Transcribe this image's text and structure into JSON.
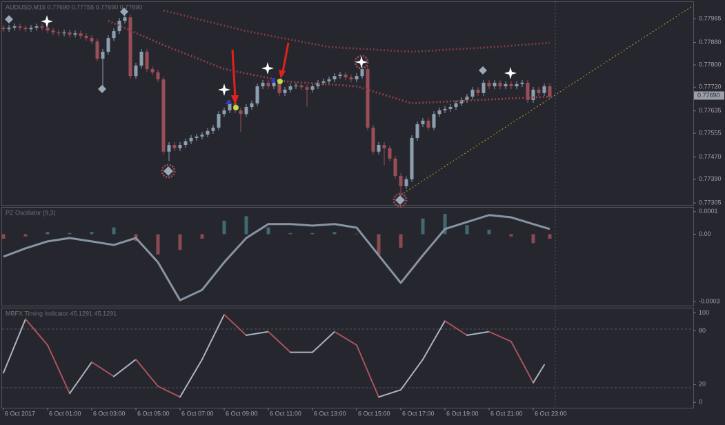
{
  "chart_data": [
    {
      "type": "candlestick",
      "title": "AUDUSD,M15  0.77690 0.77755 0.77690 0.77690",
      "categories": [
        "6 Oct 2017",
        null,
        null,
        null,
        null,
        null,
        null,
        null,
        "6 Oct 01:00",
        null,
        null,
        null,
        null,
        null,
        null,
        null,
        "6 Oct 03:00",
        null,
        null,
        null,
        null,
        null,
        null,
        null,
        "6 Oct 05:00",
        null,
        null,
        null,
        null,
        null,
        null,
        null,
        "6 Oct 07:00",
        null,
        null,
        null,
        null,
        null,
        null,
        null,
        "6 Oct 09:00",
        null,
        null,
        null,
        null,
        null,
        null,
        null,
        "6 Oct 11:00",
        null,
        null,
        null,
        null,
        null,
        null,
        null,
        "6 Oct 13:00",
        null,
        null,
        null,
        null,
        null,
        null,
        null,
        "6 Oct 15:00",
        null,
        null,
        null,
        null,
        null,
        null,
        null,
        "6 Oct 17:00",
        null,
        null,
        null,
        null,
        null,
        null,
        null,
        "6 Oct 19:00",
        null,
        null,
        null,
        null,
        null,
        null,
        null,
        "6 Oct 21:00",
        null,
        null,
        null,
        null,
        null,
        null,
        null,
        "6 Oct 23:00",
        null,
        null,
        null
      ],
      "open": [
        0.77933,
        0.77928,
        0.77933,
        0.77938,
        0.77933,
        0.77928,
        0.77933,
        0.77938,
        0.77933,
        0.77923,
        0.77916,
        0.77913,
        0.77916,
        0.77908,
        0.77913,
        0.77904,
        0.77896,
        0.77884,
        0.77822,
        0.77847,
        0.77896,
        0.77921,
        0.77958,
        0.7797,
        0.7776,
        0.77797,
        0.77847,
        0.77785,
        0.77773,
        0.77748,
        0.77489,
        0.77513,
        0.77501,
        0.77513,
        0.77526,
        0.77538,
        0.77543,
        0.7755,
        0.77563,
        0.77575,
        0.77624,
        0.77637,
        0.77662,
        0.77637,
        0.77624,
        0.77649,
        0.77662,
        0.77723,
        0.77736,
        0.77723,
        0.77736,
        0.77699,
        0.77711,
        0.77723,
        0.77726,
        0.7772,
        0.77711,
        0.77723,
        0.77736,
        0.77741,
        0.77748,
        0.7776,
        0.77765,
        0.77755,
        0.77748,
        0.7776,
        0.77785,
        0.77575,
        0.77489,
        0.77513,
        0.77501,
        0.77464,
        0.77402,
        0.77365,
        0.7739,
        0.77538,
        0.77587,
        0.776,
        0.77575,
        0.77624,
        0.77637,
        0.77642,
        0.77649,
        0.77662,
        0.77674,
        0.77686,
        0.77711,
        0.77699,
        0.77736,
        0.77723,
        0.77736,
        0.77723,
        0.77731,
        0.77723,
        0.77731,
        0.77736,
        0.77674,
        0.77711,
        0.77699,
        0.77723
      ],
      "high": [
        0.77943,
        0.77943,
        0.77948,
        0.77948,
        0.77943,
        0.77943,
        0.77948,
        0.77948,
        0.77943,
        0.77933,
        0.77926,
        0.77926,
        0.77926,
        0.77923,
        0.77923,
        0.77914,
        0.77906,
        0.77894,
        0.77857,
        0.77906,
        0.77931,
        0.77968,
        0.7798,
        0.7798,
        0.77807,
        0.77857,
        0.77857,
        0.77795,
        0.77783,
        0.77758,
        0.77523,
        0.77523,
        0.77523,
        0.77536,
        0.77548,
        0.77553,
        0.7756,
        0.77573,
        0.77585,
        0.77634,
        0.77647,
        0.77672,
        0.77672,
        0.77647,
        0.77659,
        0.77672,
        0.77733,
        0.77746,
        0.77746,
        0.77746,
        0.77746,
        0.77721,
        0.77733,
        0.77736,
        0.77736,
        0.7773,
        0.77733,
        0.77746,
        0.77751,
        0.77758,
        0.7777,
        0.77775,
        0.77775,
        0.77765,
        0.7777,
        0.77795,
        0.77795,
        0.77585,
        0.77523,
        0.77523,
        0.77511,
        0.77474,
        0.77412,
        0.774,
        0.77548,
        0.77597,
        0.7761,
        0.7761,
        0.77634,
        0.77647,
        0.77652,
        0.77659,
        0.77672,
        0.77684,
        0.77696,
        0.77721,
        0.77721,
        0.77746,
        0.77746,
        0.77746,
        0.77746,
        0.77741,
        0.77741,
        0.77741,
        0.77746,
        0.77746,
        0.77721,
        0.77721,
        0.77733,
        0.77733
      ],
      "low": [
        0.77918,
        0.77918,
        0.77923,
        0.77923,
        0.77918,
        0.77918,
        0.77923,
        0.77923,
        0.77913,
        0.77906,
        0.77903,
        0.77903,
        0.77898,
        0.77898,
        0.77894,
        0.77886,
        0.77874,
        0.77812,
        0.77711,
        0.77837,
        0.77886,
        0.77911,
        0.77948,
        0.7775,
        0.7775,
        0.77787,
        0.77775,
        0.77763,
        0.77738,
        0.77479,
        0.77455,
        0.77491,
        0.77491,
        0.77503,
        0.77516,
        0.77528,
        0.77533,
        0.7754,
        0.77553,
        0.77565,
        0.77614,
        0.77627,
        0.77627,
        0.7756,
        0.77614,
        0.77639,
        0.77652,
        0.77713,
        0.77713,
        0.77713,
        0.77689,
        0.77689,
        0.77701,
        0.77713,
        0.7771,
        0.7765,
        0.77701,
        0.77713,
        0.77726,
        0.77731,
        0.77738,
        0.7775,
        0.77745,
        0.77738,
        0.77738,
        0.7775,
        0.77565,
        0.77479,
        0.77479,
        0.7744,
        0.77454,
        0.77392,
        0.7733,
        0.77355,
        0.7738,
        0.77528,
        0.77577,
        0.77565,
        0.77565,
        0.77614,
        0.77627,
        0.77632,
        0.77639,
        0.77652,
        0.77664,
        0.77676,
        0.77689,
        0.77689,
        0.77713,
        0.77713,
        0.77713,
        0.77713,
        0.77713,
        0.77713,
        0.77721,
        0.77664,
        0.77664,
        0.77689,
        0.77689,
        0.77676
      ],
      "close": [
        0.77928,
        0.77933,
        0.77938,
        0.77933,
        0.77928,
        0.77933,
        0.77938,
        0.77933,
        0.77923,
        0.77916,
        0.77913,
        0.77916,
        0.77908,
        0.77913,
        0.77904,
        0.77896,
        0.77884,
        0.77822,
        0.77847,
        0.77896,
        0.77921,
        0.77958,
        0.7797,
        0.7776,
        0.77797,
        0.77847,
        0.77785,
        0.77773,
        0.77748,
        0.77489,
        0.77513,
        0.77501,
        0.77513,
        0.77526,
        0.77538,
        0.77543,
        0.7755,
        0.77563,
        0.77575,
        0.77624,
        0.77637,
        0.77662,
        0.77637,
        0.77624,
        0.77649,
        0.77662,
        0.77723,
        0.77736,
        0.77723,
        0.77736,
        0.77699,
        0.77711,
        0.77723,
        0.77726,
        0.7772,
        0.77711,
        0.77723,
        0.77736,
        0.77741,
        0.77748,
        0.7776,
        0.77765,
        0.77755,
        0.77748,
        0.7776,
        0.77785,
        0.77575,
        0.77489,
        0.77513,
        0.77501,
        0.77464,
        0.77402,
        0.77365,
        0.7739,
        0.77538,
        0.77587,
        0.776,
        0.77575,
        0.77624,
        0.77637,
        0.77642,
        0.77649,
        0.77662,
        0.77674,
        0.77686,
        0.77711,
        0.77699,
        0.77736,
        0.77723,
        0.77736,
        0.77723,
        0.77731,
        0.77723,
        0.77731,
        0.77736,
        0.77674,
        0.77711,
        0.77699,
        0.77723,
        0.77686
      ],
      "up_color": "#8d9eb0",
      "down_color": "#9a4e57",
      "overlays": [
        {
          "color": "#7a3b42",
          "x": [
            29,
            44,
            59,
            74,
            89,
            99
          ],
          "values": [
            0.77995,
            0.77921,
            0.77864,
            0.77847,
            0.77864,
            0.77879
          ]
        },
        {
          "color": "#8a4048",
          "x": [
            19,
            29,
            40,
            51,
            64,
            74,
            86,
            99
          ],
          "values": [
            0.77958,
            0.77871,
            0.77785,
            0.77741,
            0.77723,
            0.77662,
            0.77674,
            0.77686
          ]
        }
      ],
      "last_price": {
        "value": 0.7769,
        "label": "0.77690"
      },
      "ylim": [
        0.77298,
        0.78025
      ],
      "yticks": [
        0.77965,
        {
          "value": 0.7788,
          "label": "0.77880"
        },
        {
          "value": 0.778,
          "label": "0.77800"
        },
        {
          "value": 0.7772,
          "label": "0.77720"
        },
        0.77635,
        0.77555,
        {
          "value": 0.7747,
          "label": "0.77470"
        },
        {
          "value": 0.7739,
          "label": "0.77390"
        },
        0.77305
      ]
    },
    {
      "type": "oscillator",
      "title": "PZ Oscillator (9,3)",
      "x": [
        0,
        4,
        8,
        12,
        16,
        20,
        24,
        28,
        32,
        36,
        40,
        44,
        48,
        52,
        56,
        60,
        64,
        68,
        72,
        76,
        80,
        84,
        88,
        92,
        96,
        99
      ],
      "values": [
        -0.0001,
        -6.3e-05,
        -3.2e-05,
        -1.7e-05,
        -3.2e-05,
        -4.8e-05,
        -1.7e-05,
        -0.000125,
        -0.000294,
        -0.000248,
        -0.000125,
        -1.7e-05,
        4.5e-05,
        4.5e-05,
        3.8e-05,
        4.5e-05,
        2.9e-05,
        -9.4e-05,
        -0.000217,
        -9.4e-05,
        2.3e-05,
        5.4e-05,
        8.5e-05,
        7.5e-05,
        4.5e-05,
        2.3e-05
      ],
      "histogram": [
        -2e-05,
        -1e-05,
        1e-05,
        5e-06,
        1e-05,
        3e-05,
        -3e-05,
        -9e-05,
        -7e-05,
        -2e-05,
        6e-05,
        8e-05,
        3e-05,
        5e-06,
        5e-06,
        1e-05,
        2e-06,
        -9e-05,
        -6e-05,
        7e-05,
        9e-05,
        4e-05,
        2e-05,
        -1e-05,
        -4e-05,
        -2e-05
      ],
      "color": "#8795a3",
      "positive_color": "#3f6b70",
      "negative_color": "#8a4a52",
      "ylim": [
        -0.000318,
        0.000118
      ],
      "yticks": [
        0.0001,
        {
          "value": 0,
          "label": "0.00"
        },
        -0.0003
      ]
    },
    {
      "type": "line",
      "title": "MBFX Timing Indicator 45.1291 45.1291",
      "x": [
        0,
        4,
        8,
        12,
        16,
        20,
        24,
        28,
        32,
        36,
        40,
        44,
        48,
        52,
        56,
        60,
        64,
        68,
        72,
        76,
        80,
        84,
        88,
        92,
        96,
        98
      ],
      "values": [
        33,
        93,
        64,
        10,
        45,
        29,
        48,
        18,
        6,
        48,
        98,
        75,
        79,
        56,
        56,
        79,
        64,
        6,
        14,
        48,
        91,
        75,
        79,
        68,
        22,
        42
      ],
      "rise_color": "#a9b5c1",
      "fall_color": "#a8545c",
      "ylim": [
        -6,
        105
      ],
      "yticks": [
        100,
        80,
        20,
        0
      ]
    }
  ]
}
